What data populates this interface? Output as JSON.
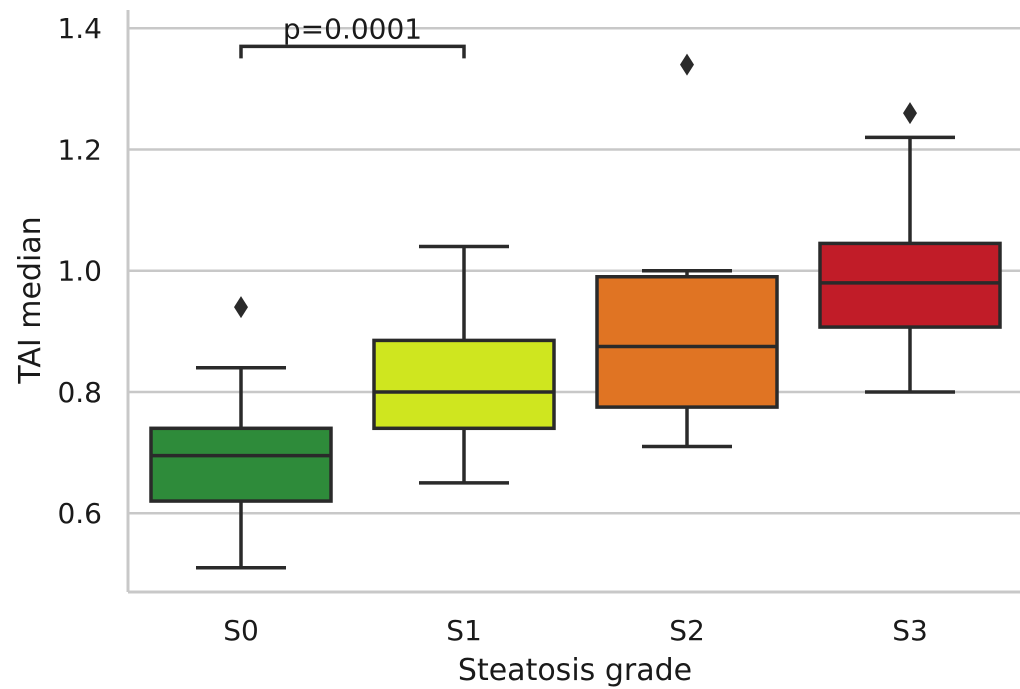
{
  "chart_data": {
    "type": "box",
    "xlabel": "Steatosis grade",
    "ylabel": "TAI median",
    "ylim": [
      0.47,
      1.43
    ],
    "yticks": [
      0.6,
      0.8,
      1.0,
      1.2,
      1.4
    ],
    "ytick_labels": [
      "0.6",
      "0.8",
      "1.0",
      "1.2",
      "1.4"
    ],
    "grid": "horizontal",
    "categories": [
      "S0",
      "S1",
      "S2",
      "S3"
    ],
    "boxes": [
      {
        "category": "S0",
        "color": "#2e8b3a",
        "whisker_low": 0.51,
        "q1": 0.62,
        "median": 0.695,
        "q3": 0.74,
        "whisker_high": 0.84,
        "outliers": [
          0.94
        ]
      },
      {
        "category": "S1",
        "color": "#cfe61f",
        "whisker_low": 0.65,
        "q1": 0.74,
        "median": 0.8,
        "q3": 0.885,
        "whisker_high": 1.04,
        "outliers": []
      },
      {
        "category": "S2",
        "color": "#e07423",
        "whisker_low": 0.71,
        "q1": 0.775,
        "median": 0.875,
        "q3": 0.99,
        "whisker_high": 1.0,
        "outliers": [
          1.34
        ]
      },
      {
        "category": "S3",
        "color": "#c11c28",
        "whisker_low": 0.8,
        "q1": 0.907,
        "median": 0.98,
        "q3": 1.045,
        "whisker_high": 1.22,
        "outliers": [
          1.26
        ]
      }
    ],
    "annotations": [
      {
        "text": "p=0.0001",
        "from": "S0",
        "to": "S1",
        "y": 1.37
      }
    ]
  }
}
